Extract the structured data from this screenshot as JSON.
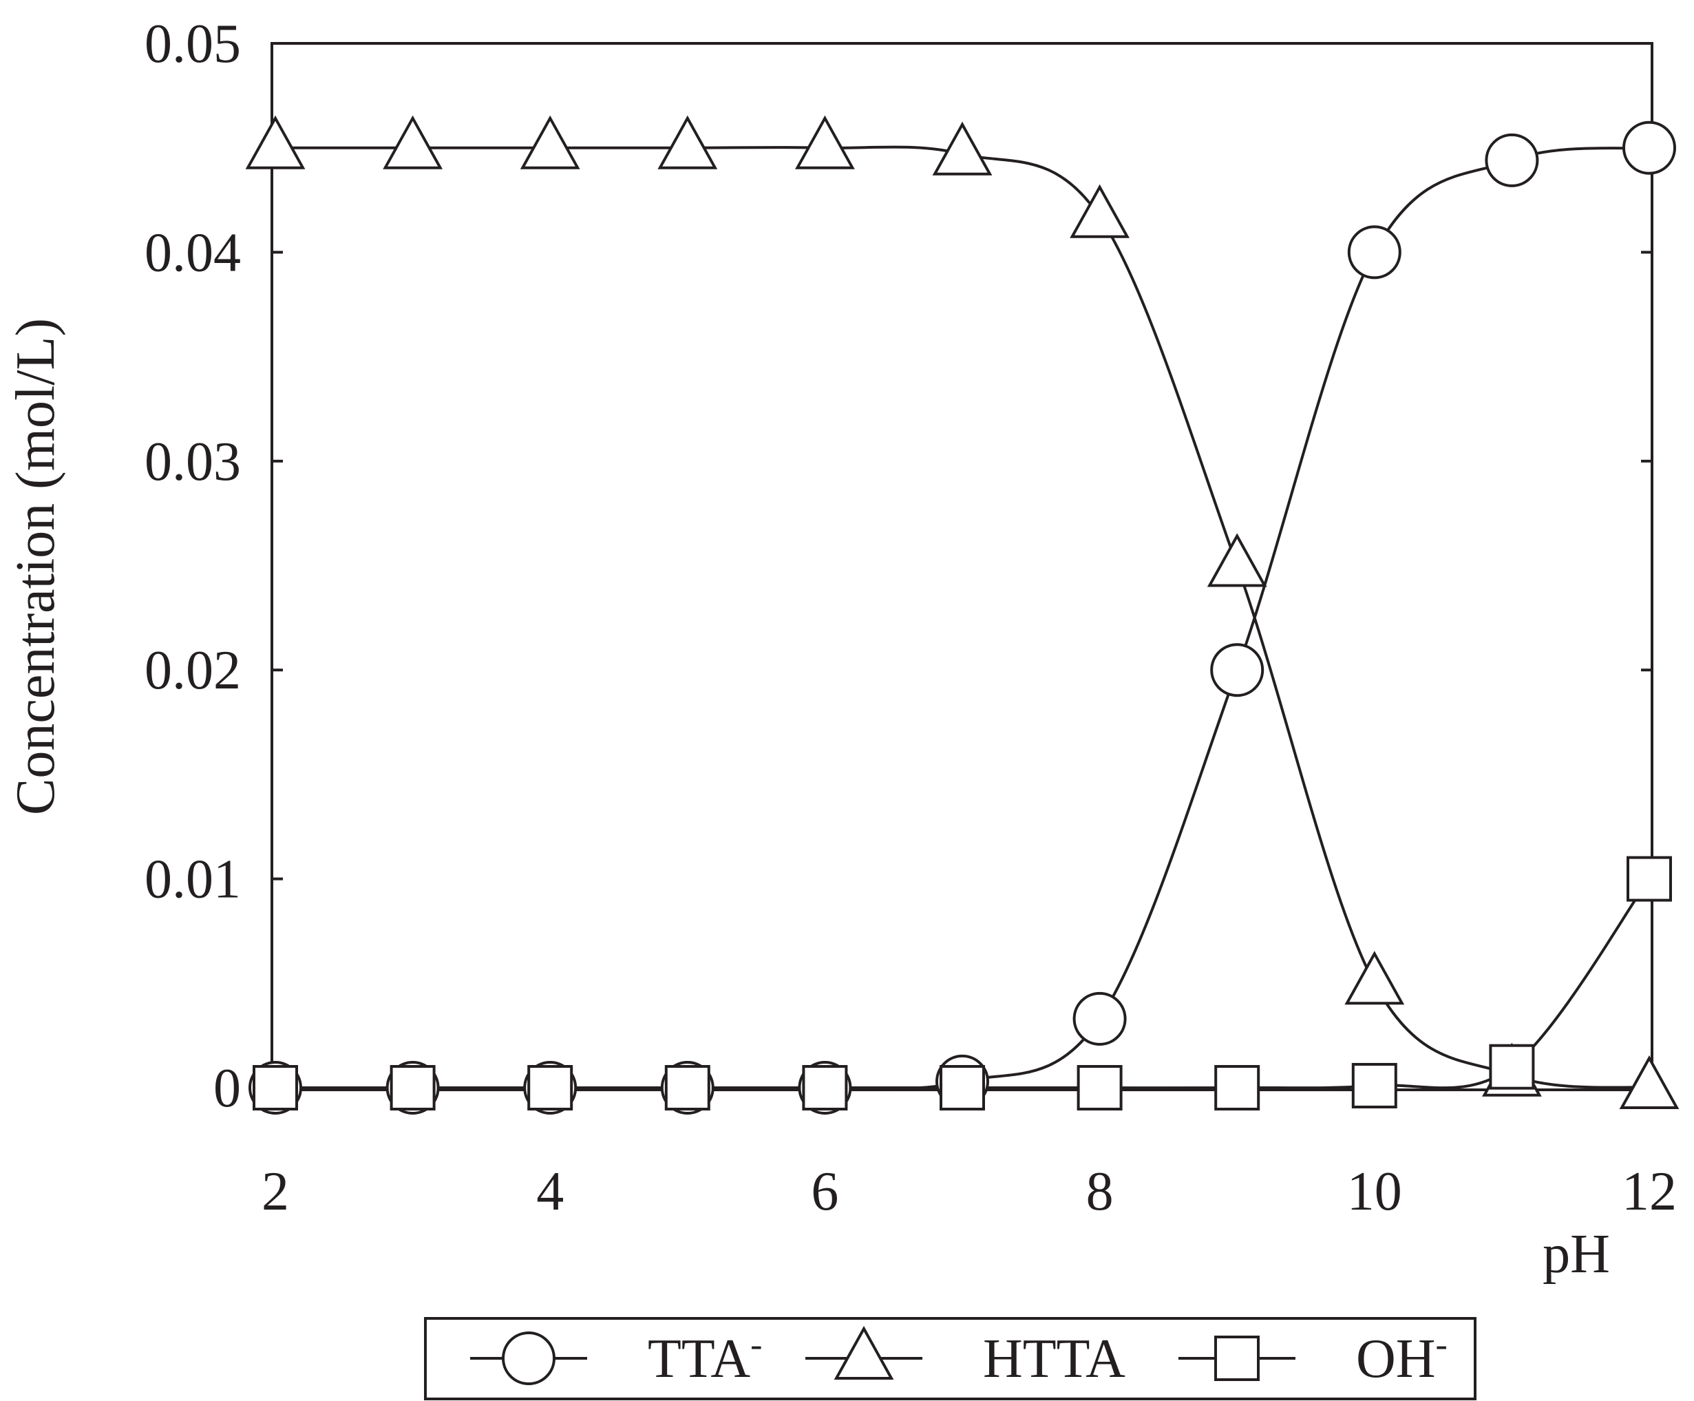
{
  "chart_data": {
    "type": "line",
    "title": "",
    "xlabel": "pH",
    "ylabel": "Concentration (mol/L)",
    "xlim": [
      2,
      12
    ],
    "ylim": [
      0,
      0.05
    ],
    "xticks": [
      2,
      4,
      6,
      8,
      10,
      12
    ],
    "yticks": [
      0,
      0.01,
      0.02,
      0.03,
      0.04,
      0.05
    ],
    "xtick_labels": [
      "2",
      "4",
      "6",
      "8",
      "10",
      "12"
    ],
    "ytick_labels": [
      "0",
      "0.01",
      "0.02",
      "0.03",
      "0.04",
      "0.05"
    ],
    "grid": false,
    "legend_position": "bottom",
    "x": [
      2,
      3,
      4,
      5,
      6,
      7,
      8,
      9,
      10,
      11,
      12
    ],
    "series": [
      {
        "name": "TTA",
        "name_superscript": "-",
        "marker": "circle",
        "values": [
          0,
          0,
          0,
          0,
          0,
          0.0003,
          0.0033,
          0.02,
          0.04,
          0.0444,
          0.045
        ]
      },
      {
        "name": "HTTA",
        "name_superscript": "",
        "marker": "triangle",
        "values": [
          0.045,
          0.045,
          0.045,
          0.045,
          0.045,
          0.0447,
          0.0417,
          0.025,
          0.005,
          0.0006,
          0
        ]
      },
      {
        "name": "OH",
        "name_superscript": "-",
        "marker": "square",
        "values": [
          0,
          0,
          0,
          0,
          0,
          0,
          0,
          0,
          0.0001,
          0.001,
          0.01
        ]
      }
    ]
  }
}
